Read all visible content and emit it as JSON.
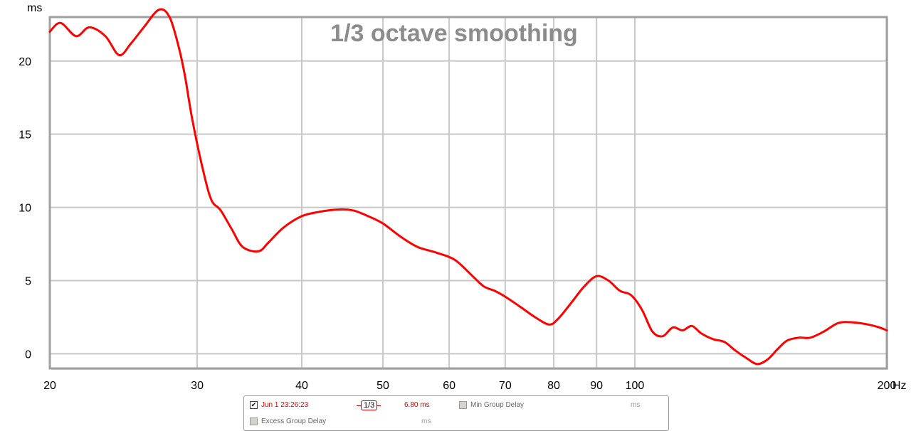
{
  "chart_data": {
    "type": "line",
    "title": "1/3 octave smoothing",
    "y_unit": "ms",
    "x_unit": "Hz",
    "x_scale": "log",
    "xlim": [
      20,
      200
    ],
    "ylim": [
      -1,
      23
    ],
    "grid": true,
    "x_ticks": [
      {
        "value": 20,
        "label": "20"
      },
      {
        "value": 30,
        "label": "30"
      },
      {
        "value": 40,
        "label": "40"
      },
      {
        "value": 50,
        "label": "50"
      },
      {
        "value": 60,
        "label": "60"
      },
      {
        "value": 70,
        "label": "70"
      },
      {
        "value": 80,
        "label": "80"
      },
      {
        "value": 90,
        "label": "90"
      },
      {
        "value": 100,
        "label": "100"
      },
      {
        "value": 200,
        "label": "200"
      }
    ],
    "y_ticks": [
      {
        "value": 0,
        "label": "0"
      },
      {
        "value": 5,
        "label": "5"
      },
      {
        "value": 10,
        "label": "10"
      },
      {
        "value": 15,
        "label": "15"
      },
      {
        "value": 20,
        "label": "20"
      }
    ],
    "series": [
      {
        "name": "Jun 1 23:26:23",
        "color": "#ff0000",
        "x": [
          20,
          20.6,
          21.5,
          22.3,
          23.3,
          24.2,
          25.0,
          25.9,
          27.0,
          27.8,
          28.5,
          29.0,
          29.6,
          30.5,
          31.2,
          32.0,
          33.0,
          34.0,
          35.5,
          36.5,
          38.0,
          40.0,
          42.0,
          44.0,
          46.0,
          48.0,
          50.0,
          52.5,
          55.0,
          58.0,
          61.0,
          64.0,
          66.0,
          68.0,
          70.0,
          73.0,
          76.0,
          79.0,
          81.0,
          84.0,
          87.0,
          90.0,
          93.0,
          96.0,
          99.0,
          102.0,
          105.0,
          108.0,
          111.0,
          114.0,
          117.0,
          120.0,
          124.0,
          128.0,
          132.0,
          136.0,
          140.0,
          144.0,
          148.0,
          152.0,
          157.0,
          162.0,
          168.0,
          175.0,
          182.0,
          190.0,
          196.0,
          200.0
        ],
        "values": [
          22.0,
          22.6,
          21.7,
          22.3,
          21.7,
          20.4,
          21.2,
          22.3,
          23.5,
          23.0,
          21.0,
          19.0,
          16.0,
          12.5,
          10.5,
          9.8,
          8.5,
          7.3,
          7.0,
          7.6,
          8.6,
          9.4,
          9.7,
          9.85,
          9.8,
          9.4,
          8.9,
          8.0,
          7.3,
          6.9,
          6.4,
          5.3,
          4.6,
          4.3,
          3.9,
          3.2,
          2.5,
          2.0,
          2.4,
          3.5,
          4.6,
          5.3,
          5.0,
          4.3,
          4.0,
          3.0,
          1.5,
          1.2,
          1.8,
          1.6,
          1.9,
          1.4,
          1.0,
          0.8,
          0.2,
          -0.3,
          -0.7,
          -0.4,
          0.3,
          0.9,
          1.1,
          1.1,
          1.5,
          2.1,
          2.15,
          2.0,
          1.8,
          1.6
        ]
      }
    ]
  },
  "legend": {
    "series_label": "Jun 1 23:26:23",
    "series_checked": true,
    "smoothing_label": "1/3",
    "series_value": "6.80 ms",
    "min_group_delay_label": "Min Group Delay",
    "min_group_delay_checked": false,
    "min_group_delay_value": "ms",
    "excess_group_delay_label": "Excess Group Delay",
    "excess_group_delay_checked": false,
    "excess_group_delay_value": "ms"
  },
  "colors": {
    "grid": "#c8c8c8",
    "frame": "#a0a0a0",
    "trace": "#ff0000",
    "title": "#8c8c8c"
  }
}
